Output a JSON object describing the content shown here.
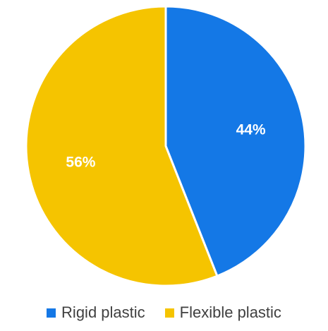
{
  "chart_data": {
    "type": "pie",
    "title": "",
    "categories": [
      "Rigid plastic",
      "Flexible plastic"
    ],
    "values": [
      44,
      56
    ],
    "labels": [
      "44%",
      "56%"
    ],
    "colors": [
      "#1478E6",
      "#F5C400"
    ],
    "legend_position": "bottom",
    "start_angle": "12 o'clock, clockwise"
  },
  "legend": {
    "items": [
      {
        "label": "Rigid plastic",
        "color": "#1478E6"
      },
      {
        "label": "Flexible plastic",
        "color": "#F5C400"
      }
    ]
  }
}
